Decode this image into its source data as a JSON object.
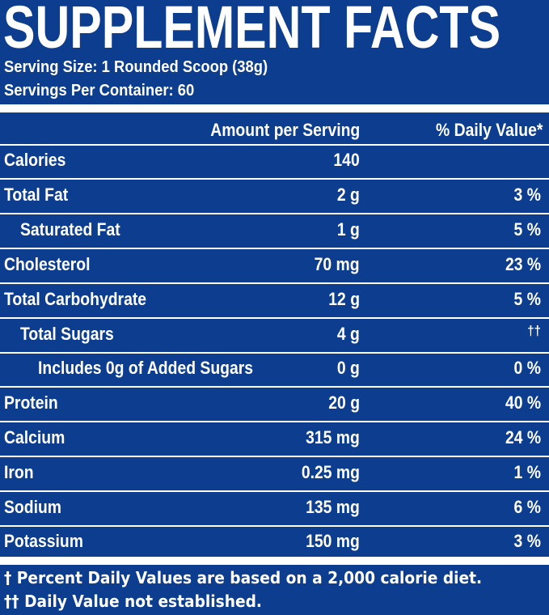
{
  "title": "SUPPLEMENT FACTS",
  "serving_size": "Serving Size: 1 Rounded Scoop (38g)",
  "servings_per_container": "Servings Per Container: 60",
  "header": {
    "amount": "Amount per Serving",
    "daily_value": "% Daily Value*"
  },
  "rows": [
    {
      "name": "Calories",
      "amount": "140",
      "dv": ""
    },
    {
      "name": "Total Fat",
      "amount": "2 g",
      "dv": "3 %"
    },
    {
      "name": "Saturated Fat",
      "amount": "1 g",
      "dv": "5 %"
    },
    {
      "name": "Cholesterol",
      "amount": "70 mg",
      "dv": "23 %"
    },
    {
      "name": "Total Carbohydrate",
      "amount": "12 g",
      "dv": "5 %"
    },
    {
      "name": "Total Sugars",
      "amount": "4 g",
      "dv": "††"
    },
    {
      "name": "Includes 0g of Added Sugars",
      "amount": "0 g",
      "dv": "0 %"
    },
    {
      "name": "Protein",
      "amount": "20 g",
      "dv": "40 %"
    },
    {
      "name": "Calcium",
      "amount": "315 mg",
      "dv": "24 %"
    },
    {
      "name": "Iron",
      "amount": "0.25 mg",
      "dv": "1 %"
    },
    {
      "name": "Sodium",
      "amount": "135 mg",
      "dv": "6 %"
    },
    {
      "name": "Potassium",
      "amount": "150 mg",
      "dv": "3 %"
    }
  ],
  "footnotes": {
    "percent_dv": "† Percent Daily Values are based on a 2,000 calorie diet.",
    "not_established": "†† Daily Value not established."
  },
  "colors": {
    "background": "#0c3d8f",
    "text": "#ffffff"
  }
}
